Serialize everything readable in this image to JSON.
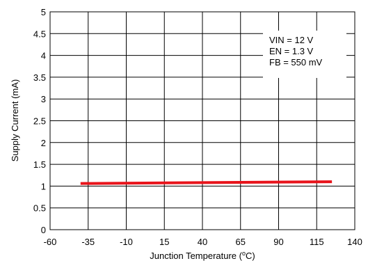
{
  "chart_data": {
    "type": "line",
    "xlabel": "Junction Temperature (",
    "xlabel_superscript": "o",
    "xlabel_suffix": "C)",
    "ylabel": "Supply Current (mA)",
    "xlim": [
      -60,
      140
    ],
    "ylim": [
      0,
      5
    ],
    "x_ticks": [
      "-60",
      "-35",
      "-10",
      "15",
      "40",
      "65",
      "90",
      "115",
      "140"
    ],
    "y_ticks": [
      "0",
      "0.5",
      "1",
      "1.5",
      "2",
      "2.5",
      "3",
      "3.5",
      "4",
      "4.5",
      "5"
    ],
    "grid": true,
    "annotation": [
      "VIN = 12 V",
      "EN = 1.3 V",
      "FB = 550 mV"
    ],
    "annotation_position": "top-right",
    "series": [
      {
        "color": "#e8141b",
        "x": [
          -40,
          125
        ],
        "y": [
          1.06,
          1.1
        ]
      }
    ]
  }
}
